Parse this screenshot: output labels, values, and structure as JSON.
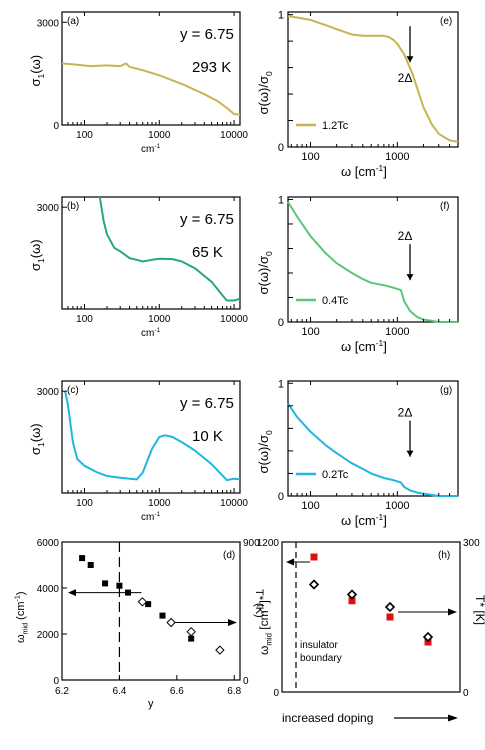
{
  "chart_data": [
    {
      "id": "a",
      "type": "line",
      "panel_label": "(a)",
      "annotation": [
        "y = 6.75",
        "293 K"
      ],
      "ylabel": "σ1(ω)",
      "xlabel": "cm-1",
      "xscale": "log",
      "xlim": [
        50,
        12000
      ],
      "ylim": [
        0,
        3300
      ],
      "xticks": [
        {
          "v": 100,
          "t": "100"
        },
        {
          "v": 1000,
          "t": "1000"
        },
        {
          "v": 10000,
          "t": "10000"
        }
      ],
      "yticks": [
        {
          "v": 0,
          "t": "0"
        },
        {
          "v": 3000,
          "t": "3000"
        }
      ],
      "color": "#c8b450",
      "series": [
        {
          "x": [
            50,
            80,
            120,
            200,
            300,
            360,
            400,
            600,
            1000,
            2000,
            4000,
            6000,
            8000,
            10000,
            12000
          ],
          "y": [
            1800,
            1760,
            1720,
            1740,
            1720,
            1800,
            1700,
            1600,
            1450,
            1200,
            900,
            700,
            500,
            320,
            300
          ]
        }
      ]
    },
    {
      "id": "b",
      "type": "line",
      "panel_label": "(b)",
      "annotation": [
        "y = 6.75",
        "65 K"
      ],
      "ylabel": "σ1(ω)",
      "xlabel": "cm-1",
      "xscale": "log",
      "xlim": [
        50,
        12000
      ],
      "ylim": [
        0,
        3300
      ],
      "xticks": [
        {
          "v": 100,
          "t": "100"
        },
        {
          "v": 1000,
          "t": "1000"
        },
        {
          "v": 10000,
          "t": "10000"
        }
      ],
      "yticks": [
        {
          "v": 3000,
          "t": "3000"
        }
      ],
      "color": "#2aa87a",
      "series": [
        {
          "x": [
            160,
            180,
            200,
            250,
            300,
            400,
            500,
            600,
            800,
            1000,
            1500,
            2000,
            3000,
            5000,
            7000,
            8000,
            10000,
            12000
          ],
          "y": [
            3300,
            2600,
            2200,
            1800,
            1700,
            1500,
            1450,
            1400,
            1450,
            1480,
            1470,
            1400,
            1200,
            800,
            400,
            250,
            250,
            300
          ]
        }
      ]
    },
    {
      "id": "c",
      "type": "line",
      "panel_label": "(c)",
      "annotation": [
        "y = 6.75",
        "10 K"
      ],
      "ylabel": "σ1(ω)",
      "xlabel": "cm-1",
      "xscale": "log",
      "xlim": [
        50,
        12000
      ],
      "ylim": [
        0,
        3300
      ],
      "xticks": [
        {
          "v": 100,
          "t": "100"
        },
        {
          "v": 1000,
          "t": "1000"
        },
        {
          "v": 10000,
          "t": "10000"
        }
      ],
      "yticks": [
        {
          "v": 3000,
          "t": "3000"
        }
      ],
      "color": "#1fb6e0",
      "series": [
        {
          "x": [
            55,
            60,
            70,
            80,
            100,
            150,
            200,
            300,
            400,
            500,
            600,
            800,
            1000,
            1200,
            1500,
            2000,
            3000,
            5000,
            8000,
            10000,
            12000
          ],
          "y": [
            3000,
            2600,
            1500,
            1000,
            800,
            600,
            500,
            450,
            420,
            400,
            600,
            1300,
            1650,
            1700,
            1650,
            1500,
            1250,
            850,
            380,
            420,
            400
          ]
        }
      ]
    },
    {
      "id": "e",
      "type": "line",
      "panel_label": "(e)",
      "ylabel": "σ(ω)/σ0",
      "xlabel": "ω [cm-1]",
      "xscale": "log",
      "xlim": [
        55,
        5000
      ],
      "ylim": [
        0,
        1.02
      ],
      "xticks": [
        {
          "v": 100,
          "t": "100"
        },
        {
          "v": 1000,
          "t": "1000"
        }
      ],
      "yticks": [
        {
          "v": 0,
          "t": "0"
        },
        {
          "v": 0.2,
          "t": "0.2"
        },
        {
          "v": 0.4,
          "t": "0.4"
        },
        {
          "v": 0.6,
          "t": "0.6"
        },
        {
          "v": 0.8,
          "t": "0.8"
        },
        {
          "v": 1,
          "t": "1"
        }
      ],
      "legend": "1.2Tc",
      "gap_label": "2Δ",
      "color": "#c8b450",
      "series": [
        {
          "x": [
            55,
            100,
            150,
            200,
            300,
            400,
            500,
            600,
            700,
            800,
            900,
            1000,
            1200,
            1500,
            2000,
            2500,
            3000,
            4000,
            5000
          ],
          "y": [
            0.99,
            0.96,
            0.92,
            0.89,
            0.85,
            0.84,
            0.84,
            0.84,
            0.84,
            0.83,
            0.81,
            0.78,
            0.7,
            0.55,
            0.3,
            0.17,
            0.1,
            0.05,
            0.04
          ]
        }
      ]
    },
    {
      "id": "f",
      "type": "line",
      "panel_label": "(f)",
      "ylabel": "σ(ω)/σ0",
      "xlabel": "ω [cm-1]",
      "xscale": "log",
      "xlim": [
        55,
        5000
      ],
      "ylim": [
        0,
        1.02
      ],
      "xticks": [
        {
          "v": 100,
          "t": "100"
        },
        {
          "v": 1000,
          "t": "1000"
        }
      ],
      "yticks": [
        {
          "v": 0,
          "t": "0"
        },
        {
          "v": 0.2,
          "t": "0.2"
        },
        {
          "v": 0.4,
          "t": "0.4"
        },
        {
          "v": 0.6,
          "t": "0.6"
        },
        {
          "v": 0.8,
          "t": "0.8"
        },
        {
          "v": 1,
          "t": "1"
        }
      ],
      "legend": "0.4Tc",
      "gap_label": "2Δ",
      "color": "#5cc47a",
      "series": [
        {
          "x": [
            55,
            70,
            100,
            150,
            200,
            300,
            400,
            500,
            700,
            900,
            1000,
            1100,
            1200,
            1400,
            1700,
            2000,
            3000,
            5000
          ],
          "y": [
            0.98,
            0.86,
            0.7,
            0.56,
            0.48,
            0.4,
            0.35,
            0.32,
            0.3,
            0.28,
            0.27,
            0.26,
            0.17,
            0.09,
            0.04,
            0.02,
            0.0,
            0.0
          ]
        }
      ]
    },
    {
      "id": "g",
      "type": "line",
      "panel_label": "(g)",
      "ylabel": "σ(ω)/σ0",
      "xlabel": "ω [cm-1]",
      "xscale": "log",
      "xlim": [
        55,
        5000
      ],
      "ylim": [
        0,
        1.02
      ],
      "xticks": [
        {
          "v": 100,
          "t": "100"
        },
        {
          "v": 1000,
          "t": "1000"
        }
      ],
      "yticks": [
        {
          "v": 0,
          "t": "0"
        },
        {
          "v": 0.2,
          "t": "0.2"
        },
        {
          "v": 0.4,
          "t": "0.4"
        },
        {
          "v": 0.6,
          "t": "0.6"
        },
        {
          "v": 0.8,
          "t": "0.8"
        },
        {
          "v": 1,
          "t": "1"
        }
      ],
      "legend": "0.2Tc",
      "gap_label": "2Δ",
      "color": "#1fb6e0",
      "series": [
        {
          "x": [
            55,
            70,
            100,
            150,
            200,
            300,
            400,
            500,
            700,
            900,
            1000,
            1100,
            1200,
            1400,
            1700,
            2000,
            3000,
            5000
          ],
          "y": [
            0.82,
            0.7,
            0.57,
            0.45,
            0.38,
            0.29,
            0.24,
            0.2,
            0.16,
            0.14,
            0.13,
            0.12,
            0.08,
            0.05,
            0.03,
            0.02,
            0.0,
            0.0
          ]
        }
      ]
    },
    {
      "id": "d",
      "type": "scatter",
      "panel_label": "(d)",
      "ylabel": "ωmid (cm-1)",
      "xlabel": "y",
      "ylabel_right": "T* (K)",
      "xlim": [
        6.2,
        6.82
      ],
      "ylim": [
        0,
        6000
      ],
      "ylim_right": [
        0,
        900
      ],
      "xticks": [
        {
          "v": 6.2,
          "t": "6.2"
        },
        {
          "v": 6.4,
          "t": "6.4"
        },
        {
          "v": 6.6,
          "t": "6.6"
        },
        {
          "v": 6.8,
          "t": "6.8"
        }
      ],
      "yticks": [
        {
          "v": 0,
          "t": "0"
        },
        {
          "v": 2000,
          "t": "2000"
        },
        {
          "v": 4000,
          "t": "4000"
        },
        {
          "v": 6000,
          "t": "6000"
        }
      ],
      "yticks_right": [
        {
          "v": 0,
          "t": "0"
        },
        {
          "v": 900,
          "t": "900"
        }
      ],
      "series": [
        {
          "marker": "square-filled",
          "x": [
            6.27,
            6.3,
            6.35,
            6.4,
            6.43,
            6.5,
            6.55,
            6.65
          ],
          "y": [
            5300,
            5000,
            4200,
            4100,
            3800,
            3300,
            2800,
            1800
          ]
        },
        {
          "marker": "diamond-open",
          "x": [
            6.48,
            6.58,
            6.65,
            6.75
          ],
          "y": [
            3400,
            2500,
            2100,
            1300
          ]
        }
      ]
    },
    {
      "id": "h",
      "type": "scatter",
      "panel_label": "(h)",
      "ylabel": "ωmid [cm-1]",
      "ylabel_right": "T* [K]",
      "xlabel": "increased doping",
      "annotation": [
        "insulator",
        "boundary"
      ],
      "ylim": [
        0,
        1200
      ],
      "ylim_right": [
        0,
        300
      ],
      "yticks": [
        {
          "v": 0,
          "t": "0"
        },
        {
          "v": 1200,
          "t": "1200"
        }
      ],
      "yticks_right": [
        {
          "v": 0,
          "t": "0"
        },
        {
          "v": 300,
          "t": "300"
        }
      ],
      "series": [
        {
          "marker": "square-red",
          "x": [
            1,
            2,
            3,
            4
          ],
          "y": [
            1080,
            730,
            600,
            400
          ]
        },
        {
          "marker": "diamond-open",
          "x": [
            1,
            2,
            3,
            4
          ],
          "y": [
            860,
            780,
            680,
            440
          ]
        }
      ]
    }
  ]
}
